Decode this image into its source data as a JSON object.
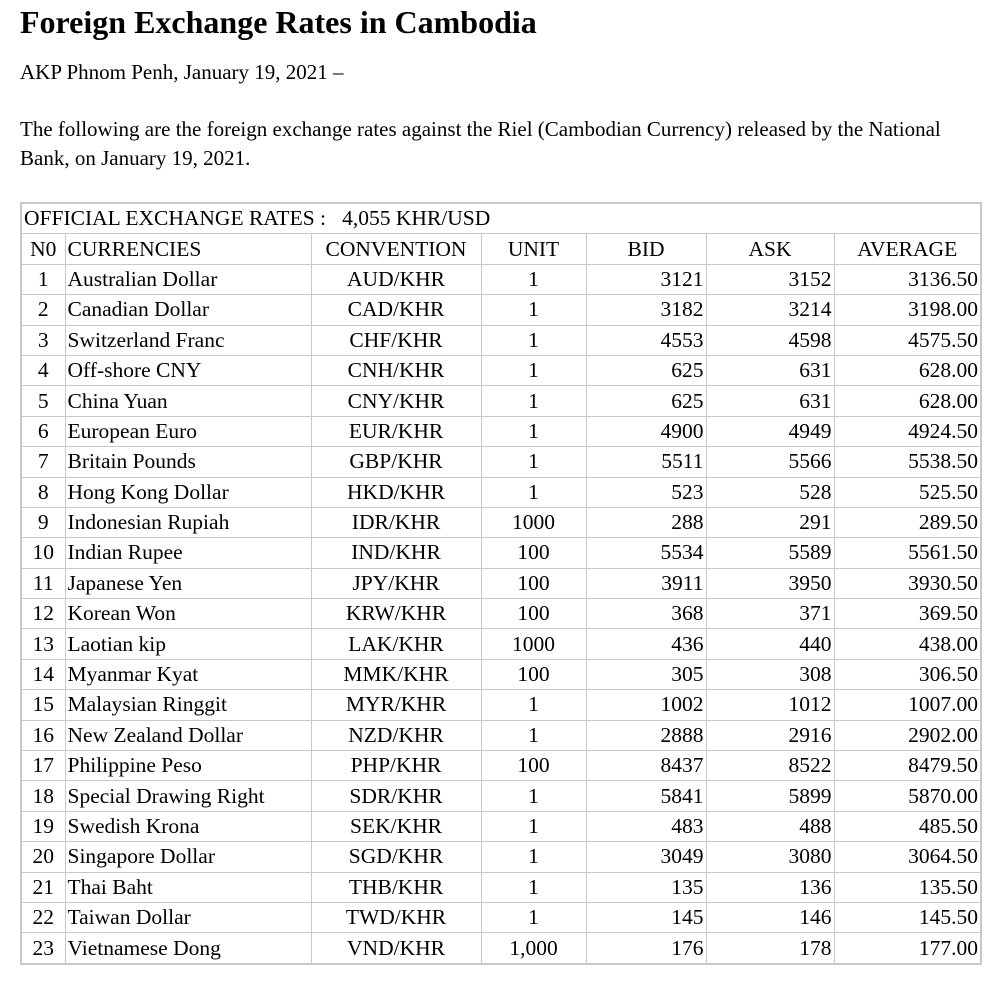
{
  "header": {
    "title": "Foreign Exchange Rates in Cambodia",
    "dateline": "AKP Phnom Penh, January 19, 2021 –"
  },
  "intro": "The following are the foreign exchange rates against the Riel (Cambodian Currency) released by the National Bank, on January 19, 2021.",
  "table": {
    "official": {
      "label": "OFFICIAL EXCHANGE RATES :",
      "value": "4,055 KHR/USD"
    },
    "columns": [
      "N0",
      "CURRENCIES",
      "CONVENTION",
      "UNIT",
      "BID",
      "ASK",
      "AVERAGE"
    ],
    "rows": [
      [
        "1",
        "Australian Dollar",
        "AUD/KHR",
        "1",
        "3121",
        "3152",
        "3136.50"
      ],
      [
        "2",
        "Canadian Dollar",
        "CAD/KHR",
        "1",
        "3182",
        "3214",
        "3198.00"
      ],
      [
        "3",
        "Switzerland Franc",
        "CHF/KHR",
        "1",
        "4553",
        "4598",
        "4575.50"
      ],
      [
        "4",
        "Off-shore CNY",
        "CNH/KHR",
        "1",
        "625",
        "631",
        "628.00"
      ],
      [
        "5",
        "China Yuan",
        "CNY/KHR",
        "1",
        "625",
        "631",
        "628.00"
      ],
      [
        "6",
        "European Euro",
        "EUR/KHR",
        "1",
        "4900",
        "4949",
        "4924.50"
      ],
      [
        "7",
        "Britain Pounds",
        "GBP/KHR",
        "1",
        "5511",
        "5566",
        "5538.50"
      ],
      [
        "8",
        "Hong Kong Dollar",
        "HKD/KHR",
        "1",
        "523",
        "528",
        "525.50"
      ],
      [
        "9",
        "Indonesian Rupiah",
        "IDR/KHR",
        "1000",
        "288",
        "291",
        "289.50"
      ],
      [
        "10",
        "Indian Rupee",
        "IND/KHR",
        "100",
        "5534",
        "5589",
        "5561.50"
      ],
      [
        "11",
        "Japanese Yen",
        "JPY/KHR",
        "100",
        "3911",
        "3950",
        "3930.50"
      ],
      [
        "12",
        "Korean Won",
        "KRW/KHR",
        "100",
        "368",
        "371",
        "369.50"
      ],
      [
        "13",
        "Laotian kip",
        "LAK/KHR",
        "1000",
        "436",
        "440",
        "438.00"
      ],
      [
        "14",
        "Myanmar Kyat",
        "MMK/KHR",
        "100",
        "305",
        "308",
        "306.50"
      ],
      [
        "15",
        "Malaysian Ringgit",
        "MYR/KHR",
        "1",
        "1002",
        "1012",
        "1007.00"
      ],
      [
        "16",
        "New Zealand Dollar",
        "NZD/KHR",
        "1",
        "2888",
        "2916",
        "2902.00"
      ],
      [
        "17",
        "Philippine Peso",
        "PHP/KHR",
        "100",
        "8437",
        "8522",
        "8479.50"
      ],
      [
        "18",
        "Special Drawing Right",
        "SDR/KHR",
        "1",
        "5841",
        "5899",
        "5870.00"
      ],
      [
        "19",
        "Swedish Krona",
        "SEK/KHR",
        "1",
        "483",
        "488",
        "485.50"
      ],
      [
        "20",
        "Singapore Dollar",
        "SGD/KHR",
        "1",
        "3049",
        "3080",
        "3064.50"
      ],
      [
        "21",
        "Thai Baht",
        "THB/KHR",
        "1",
        "135",
        "136",
        "135.50"
      ],
      [
        "22",
        "Taiwan Dollar",
        "TWD/KHR",
        "1",
        "145",
        "146",
        "145.50"
      ],
      [
        "23",
        "Vietnamese Dong",
        "VND/KHR",
        "1,000",
        "176",
        "178",
        "177.00"
      ]
    ]
  }
}
